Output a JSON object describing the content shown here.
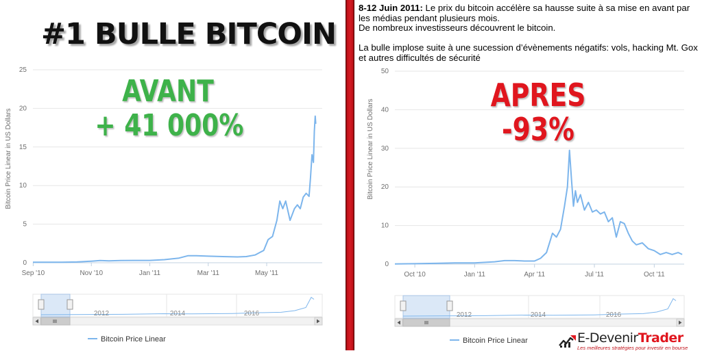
{
  "title": "#1 BULLE BITCOIN",
  "avant": {
    "label": "AVANT",
    "change": "+ 41 000%",
    "color": "#3eb24a"
  },
  "apres": {
    "label": "APRES",
    "change": "-93%",
    "color": "#e0161e"
  },
  "description": {
    "date": "8-12 Juin 2011:",
    "line1": " Le prix du bitcoin accélère sa hausse suite à sa mise en avant par les médias pendant plusieurs mois.",
    "line2": "De nombreux investisseurs découvrent le bitcoin.",
    "line3": "La bulle implose suite à une sucession d’évènements négatifs: vols, hacking Mt. Gox et autres difficultés de sécurité"
  },
  "brand": {
    "name_part1": "E-Devenir",
    "name_part2": "Trader",
    "tagline": "Les meilleures stratégies pour investir en bourse"
  },
  "colors": {
    "line": "#7cb5ec",
    "navigator_fill": "#dbe8f7",
    "divider": "#c0121a"
  },
  "chart_data": [
    {
      "type": "line",
      "title": "",
      "xlabel": "",
      "ylabel": "Bitcoin Price Linear in US Dollars",
      "ylim": [
        0,
        25
      ],
      "y_ticks": [
        "0",
        "5",
        "10",
        "15",
        "20",
        "25"
      ],
      "x_ticks": [
        {
          "t": 0.01,
          "label": "Sep '10"
        },
        {
          "t": 2.0,
          "label": "Nov '10"
        },
        {
          "t": 4.0,
          "label": "Jan '11"
        },
        {
          "t": 6.0,
          "label": "Mar '11"
        },
        {
          "t": 8.0,
          "label": "May '11"
        }
      ],
      "xlim": [
        0,
        9.9
      ],
      "grid": true,
      "legend_position": "bottom-left",
      "series": [
        {
          "name": "Bitcoin Price Linear",
          "x": [
            0,
            0.5,
            1,
            1.5,
            2,
            2.3,
            2.6,
            3,
            3.5,
            4,
            4.5,
            5,
            5.3,
            5.6,
            6,
            6.5,
            7,
            7.3,
            7.6,
            7.9,
            8.05,
            8.2,
            8.35,
            8.45,
            8.55,
            8.65,
            8.8,
            8.95,
            9.05,
            9.15,
            9.25,
            9.35,
            9.45,
            9.5,
            9.55,
            9.6,
            9.63,
            9.66,
            9.68
          ],
          "y": [
            0.06,
            0.06,
            0.07,
            0.1,
            0.2,
            0.28,
            0.25,
            0.28,
            0.3,
            0.3,
            0.4,
            0.6,
            0.9,
            0.9,
            0.85,
            0.8,
            0.75,
            0.8,
            1.0,
            1.6,
            3.0,
            3.4,
            5.5,
            8.0,
            7.0,
            8.0,
            5.5,
            7.0,
            7.5,
            7.0,
            8.5,
            9.0,
            8.6,
            11.0,
            14.0,
            13.0,
            17.0,
            19.0,
            18.0
          ]
        }
      ],
      "navigator": {
        "labels": [
          "2012",
          "2014",
          "2016"
        ]
      }
    },
    {
      "type": "line",
      "title": "",
      "xlabel": "",
      "ylabel": "Bitcoin Price Linear in US Dollars",
      "ylim": [
        0,
        50
      ],
      "y_ticks": [
        "0",
        "10",
        "20",
        "30",
        "40",
        "50"
      ],
      "x_ticks": [
        {
          "t": 1.0,
          "label": "Oct '10"
        },
        {
          "t": 4.0,
          "label": "Jan '11"
        },
        {
          "t": 7.0,
          "label": "Apr '11"
        },
        {
          "t": 10.0,
          "label": "Jul '11"
        },
        {
          "t": 13.0,
          "label": "Oct '11"
        }
      ],
      "xlim": [
        0,
        14.5
      ],
      "grid": true,
      "legend_position": "bottom-left",
      "series": [
        {
          "name": "Bitcoin Price Linear",
          "x": [
            0,
            1,
            2,
            3,
            4,
            5,
            5.5,
            6,
            6.5,
            7,
            7.3,
            7.6,
            7.9,
            8.1,
            8.3,
            8.5,
            8.65,
            8.75,
            8.85,
            8.95,
            9.05,
            9.15,
            9.3,
            9.5,
            9.7,
            9.9,
            10.1,
            10.3,
            10.5,
            10.7,
            10.9,
            11.1,
            11.3,
            11.5,
            11.7,
            11.9,
            12.1,
            12.4,
            12.7,
            13.0,
            13.3,
            13.6,
            13.9,
            14.2,
            14.4
          ],
          "y": [
            0.06,
            0.1,
            0.2,
            0.3,
            0.3,
            0.6,
            0.9,
            0.9,
            0.8,
            0.8,
            1.5,
            3.0,
            8.0,
            7.0,
            9.0,
            15.0,
            20.0,
            29.5,
            22.0,
            15.0,
            19.0,
            16.0,
            18.0,
            14.0,
            16.0,
            13.5,
            14.0,
            13.0,
            13.5,
            11.0,
            12.0,
            7.0,
            11.0,
            10.5,
            8.0,
            6.0,
            5.0,
            5.5,
            4.0,
            3.5,
            2.5,
            3.0,
            2.5,
            3.0,
            2.5
          ]
        }
      ],
      "navigator": {
        "labels": [
          "2012",
          "2014",
          "2016"
        ]
      }
    }
  ]
}
